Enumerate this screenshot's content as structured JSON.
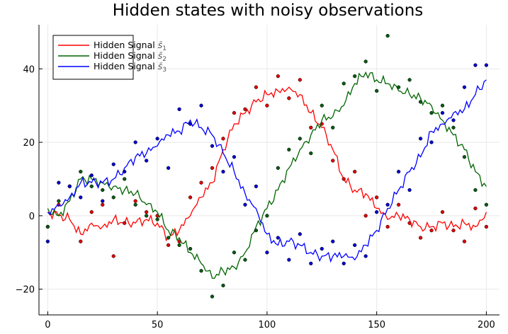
{
  "chart_data": {
    "type": "line",
    "title": "Hidden states with noisy observations",
    "xlabel": "",
    "ylabel": "",
    "xlim": [
      -4,
      206
    ],
    "ylim": [
      -27,
      52
    ],
    "xticks": [
      0,
      50,
      100,
      150,
      200
    ],
    "yticks": [
      -20,
      0,
      20,
      40
    ],
    "ytick_labels": [
      "−20",
      "0",
      "20",
      "40"
    ],
    "grid": true,
    "legend_position": "top-left",
    "x": [
      0,
      5,
      10,
      15,
      20,
      25,
      30,
      35,
      40,
      45,
      50,
      55,
      60,
      65,
      70,
      75,
      80,
      85,
      90,
      95,
      100,
      105,
      110,
      115,
      120,
      125,
      130,
      135,
      140,
      145,
      150,
      155,
      160,
      165,
      170,
      175,
      180,
      185,
      190,
      195,
      200
    ],
    "series": [
      {
        "name": "Hidden Signal s̄₁",
        "legend_base": "Hidden Signal ",
        "legend_sym": "s̄",
        "legend_sub": "1",
        "color": "#ff0000",
        "dot_color": "#e00000",
        "values": [
          1,
          0,
          -1,
          -5,
          -2,
          -3,
          -1,
          -2,
          -2,
          -1,
          -2,
          -6,
          -4,
          0,
          5,
          9,
          18,
          25,
          28,
          31,
          33,
          34,
          35,
          33,
          28,
          24,
          18,
          10,
          7,
          6,
          2,
          -1,
          0,
          -1,
          -3,
          -3,
          -2,
          -3,
          -2,
          -3,
          1
        ],
        "observations": [
          -3,
          3,
          8,
          -7,
          1,
          3,
          -11,
          -2,
          4,
          1,
          0,
          -8,
          -7,
          5,
          9,
          13,
          21,
          28,
          29,
          35,
          30,
          38,
          32,
          37,
          24,
          25,
          15,
          10,
          12,
          0,
          5,
          -3,
          3,
          -2,
          -6,
          -4,
          1,
          -4,
          -7,
          2,
          -3
        ]
      },
      {
        "name": "Hidden Signal s̄₂",
        "legend_base": "Hidden Signal ",
        "legend_sym": "s̄",
        "legend_sub": "2",
        "color": "#006400",
        "dot_color": "#0a5a14",
        "values": [
          2,
          0,
          4,
          10,
          10,
          9,
          8,
          7,
          6,
          3,
          1,
          -4,
          -6,
          -10,
          -13,
          -17,
          -15,
          -14,
          -10,
          -3,
          2,
          7,
          13,
          18,
          22,
          26,
          27,
          30,
          36,
          39,
          37,
          36,
          34,
          33,
          32,
          30,
          26,
          22,
          18,
          12,
          8
        ],
        "observations": [
          -3,
          4,
          8,
          12,
          8,
          7,
          5,
          10,
          3,
          0,
          -1,
          -6,
          -8,
          -9,
          -15,
          -22,
          -19,
          -10,
          -12,
          -4,
          0,
          13,
          18,
          21,
          17,
          30,
          24,
          36,
          38,
          42,
          34,
          49,
          35,
          37,
          31,
          28,
          30,
          24,
          16,
          7,
          3
        ]
      },
      {
        "name": "Hidden Signal s̄₃",
        "legend_base": "Hidden Signal ",
        "legend_sym": "s̄",
        "legend_sub": "3",
        "color": "#0000ff",
        "dot_color": "#0000d0",
        "values": [
          1,
          3,
          5,
          9,
          9,
          9,
          10,
          13,
          16,
          17,
          19,
          22,
          23,
          26,
          24,
          22,
          17,
          12,
          6,
          2,
          -5,
          -8,
          -7,
          -8,
          -10,
          -11,
          -11,
          -11,
          -12,
          -8,
          -4,
          2,
          7,
          12,
          16,
          23,
          25,
          28,
          29,
          33,
          37
        ],
        "observations": [
          -7,
          9,
          8,
          5,
          11,
          4,
          14,
          12,
          20,
          15,
          21,
          13,
          29,
          25,
          30,
          19,
          12,
          16,
          3,
          8,
          -10,
          -6,
          -12,
          -5,
          -13,
          -9,
          -7,
          -13,
          -8,
          -11,
          1,
          3,
          12,
          7,
          21,
          20,
          28,
          26,
          35,
          41,
          41
        ]
      }
    ]
  }
}
